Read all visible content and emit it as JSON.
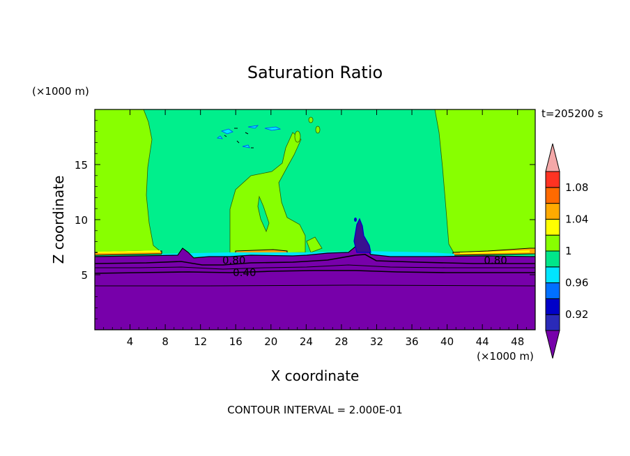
{
  "chart_data": {
    "type": "heatmap",
    "title": "Saturation Ratio",
    "xlabel": "X coordinate",
    "ylabel": "Z coordinate",
    "x_unit": "(×1000 m)",
    "y_unit": "(×1000 m)",
    "time_label": "t=205200 s",
    "contour_interval": "CONTOUR INTERVAL = 2.000E-01",
    "xlim": [
      0,
      50
    ],
    "ylim": [
      0,
      20
    ],
    "x_ticks": [
      4,
      8,
      12,
      16,
      20,
      24,
      28,
      32,
      36,
      40,
      44,
      48
    ],
    "y_ticks": [
      5,
      10,
      15
    ],
    "contour_labels": [
      {
        "text": "0.80",
        "x": 15.8,
        "y": 6.3
      },
      {
        "text": "0.40",
        "x": 17.0,
        "y": 5.2
      },
      {
        "text": "0.80",
        "x": 45.5,
        "y": 6.3
      }
    ],
    "colorbar": {
      "levels": [
        0.92,
        0.94,
        0.96,
        0.98,
        1.0,
        1.02,
        1.04,
        1.06,
        1.08,
        1.1
      ],
      "tick_labels": [
        "0.92",
        "0.96",
        "1",
        "1.04",
        "1.08"
      ],
      "colors": [
        "#5500aa",
        "#2a2ab8",
        "#0000c8",
        "#0070ff",
        "#00e5ff",
        "#00e68a",
        "#88ff00",
        "#ffff00",
        "#ffaa00",
        "#ff6a00",
        "#ff3322",
        "#f4a8a8"
      ]
    },
    "layers": [
      {
        "range": "< 0.92",
        "color": "#7700aa",
        "z": [
          0,
          6.8
        ]
      },
      {
        "range": "0.98-1.00",
        "color": "#00ef8c",
        "z": [
          6.8,
          20
        ]
      },
      {
        "range": "1.00-1.02",
        "color": "#88ff00",
        "x": [
          0,
          6.5
        ],
        "z": [
          7,
          20
        ]
      },
      {
        "range": "1.00-1.02",
        "color": "#88ff00",
        "x": [
          38.5,
          50
        ],
        "z": [
          7,
          20
        ]
      },
      {
        "range": "1.00-1.02",
        "color": "#88ff00",
        "x": [
          15.5,
          24.5
        ],
        "z": [
          7,
          14
        ]
      }
    ]
  }
}
